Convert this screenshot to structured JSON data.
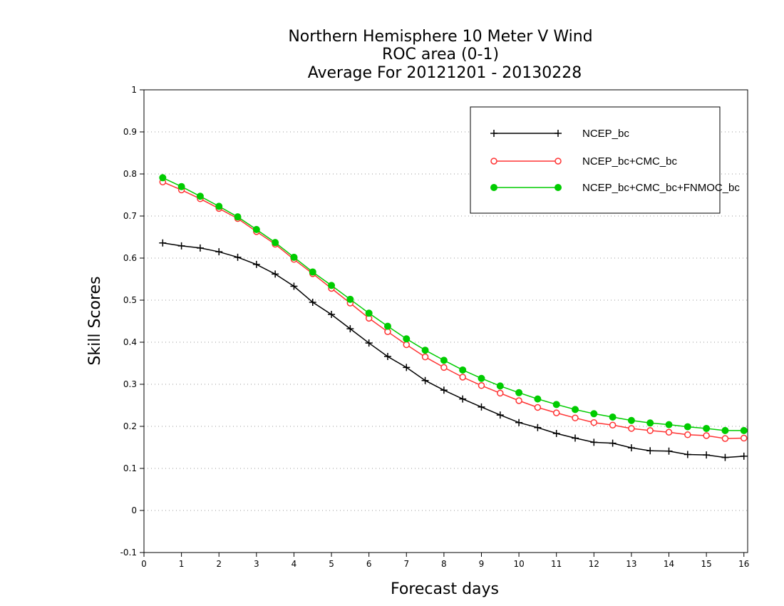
{
  "chart_data": {
    "type": "line",
    "title": [
      "Northern Hemisphere 10 Meter V Wind",
      "ROC area (0-1)",
      "Average For 20121201 - 20130228"
    ],
    "xlabel": "Forecast days",
    "ylabel": "Skill Scores",
    "xlim": [
      0,
      16.1
    ],
    "ylim": [
      -0.1,
      1
    ],
    "xticks": [
      0,
      1,
      2,
      3,
      4,
      5,
      6,
      7,
      8,
      9,
      10,
      11,
      12,
      13,
      14,
      15,
      16
    ],
    "yticks": [
      -0.1,
      0,
      0.1,
      0.2,
      0.3,
      0.4,
      0.5,
      0.6,
      0.7,
      0.8,
      0.9,
      1
    ],
    "ytick_labels": [
      "-0.1",
      "0",
      "0.1",
      "0.2",
      "0.3",
      "0.4",
      "0.5",
      "0.6",
      "0.7",
      "0.8",
      "0.9",
      "1"
    ],
    "grid": true,
    "legend_position": "top-right",
    "x": [
      0.5,
      1,
      1.5,
      2,
      2.5,
      3,
      3.5,
      4,
      4.5,
      5,
      5.5,
      6,
      6.5,
      7,
      7.5,
      8,
      8.5,
      9,
      9.5,
      10,
      10.5,
      11,
      11.5,
      12,
      12.5,
      13,
      13.5,
      14,
      14.5,
      15,
      15.5,
      16
    ],
    "series": [
      {
        "name": "NCEP_bc",
        "color": "#000000",
        "marker": "plus",
        "values": [
          0.636,
          0.629,
          0.624,
          0.615,
          0.602,
          0.585,
          0.562,
          0.533,
          0.495,
          0.466,
          0.432,
          0.398,
          0.366,
          0.34,
          0.309,
          0.286,
          0.265,
          0.246,
          0.227,
          0.209,
          0.197,
          0.183,
          0.172,
          0.162,
          0.16,
          0.149,
          0.142,
          0.141,
          0.133,
          0.132,
          0.126,
          0.129
        ]
      },
      {
        "name": "NCEP_bc+CMC_bc",
        "color": "#ff3333",
        "marker": "open-circle",
        "values": [
          0.781,
          0.762,
          0.741,
          0.718,
          0.694,
          0.663,
          0.633,
          0.597,
          0.563,
          0.528,
          0.493,
          0.457,
          0.425,
          0.394,
          0.365,
          0.34,
          0.317,
          0.297,
          0.279,
          0.261,
          0.245,
          0.232,
          0.22,
          0.209,
          0.203,
          0.195,
          0.19,
          0.186,
          0.18,
          0.178,
          0.171,
          0.172
        ]
      },
      {
        "name": "NCEP_bc+CMC_bc+FNMOC_bc",
        "color": "#00cc00",
        "marker": "filled-circle",
        "values": [
          0.791,
          0.77,
          0.747,
          0.723,
          0.698,
          0.668,
          0.637,
          0.602,
          0.567,
          0.535,
          0.502,
          0.469,
          0.438,
          0.408,
          0.381,
          0.357,
          0.334,
          0.314,
          0.296,
          0.28,
          0.265,
          0.252,
          0.24,
          0.23,
          0.222,
          0.214,
          0.208,
          0.204,
          0.199,
          0.195,
          0.19,
          0.19
        ]
      }
    ]
  }
}
